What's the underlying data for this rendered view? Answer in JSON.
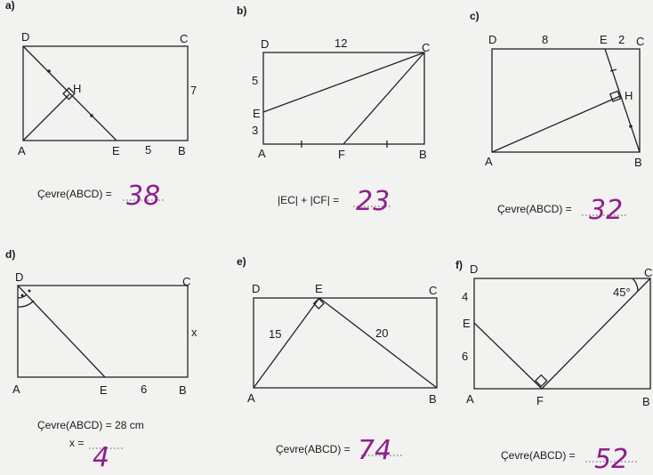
{
  "problems": {
    "a": {
      "tag": "a)",
      "labels": {
        "D": "D",
        "C": "C",
        "H": "H",
        "A": "A",
        "E": "E",
        "B": "B"
      },
      "lengths": {
        "eb": "5",
        "bc": "7"
      },
      "caption": "Çevre(ABCD) =",
      "answer": "38"
    },
    "b": {
      "tag": "b)",
      "labels": {
        "D": "D",
        "C": "C",
        "E": "E",
        "A": "A",
        "F": "F",
        "B": "B"
      },
      "lengths": {
        "dc": "12",
        "de": "5",
        "ea": "3"
      },
      "caption": "|EC| + |CF| =",
      "answer": "23"
    },
    "c": {
      "tag": "c)",
      "labels": {
        "D": "D",
        "E": "E",
        "C": "C",
        "H": "H",
        "A": "A",
        "B": "B"
      },
      "lengths": {
        "de": "8",
        "ec": "2"
      },
      "caption": "Çevre(ABCD) =",
      "answer": "32"
    },
    "d": {
      "tag": "d)",
      "labels": {
        "D": "D",
        "C": "C",
        "A": "A",
        "E": "E",
        "B": "B"
      },
      "lengths": {
        "eb": "6",
        "x": "x"
      },
      "caption": "Çevre(ABCD) = 28 cm",
      "caption2": "x =",
      "answer": "4"
    },
    "e": {
      "tag": "e)",
      "labels": {
        "D": "D",
        "E": "E",
        "C": "C",
        "A": "A",
        "B": "B"
      },
      "lengths": {
        "ae": "15",
        "eb": "20"
      },
      "caption": "Çevre(ABCD) =",
      "answer": "74"
    },
    "f": {
      "tag": "f)",
      "labels": {
        "D": "D",
        "C": "C",
        "E": "E",
        "A": "A",
        "F": "F",
        "B": "B"
      },
      "lengths": {
        "de": "4",
        "ea": "6"
      },
      "angle": "45°",
      "caption": "Çevre(ABCD) =",
      "answer": "52"
    }
  }
}
